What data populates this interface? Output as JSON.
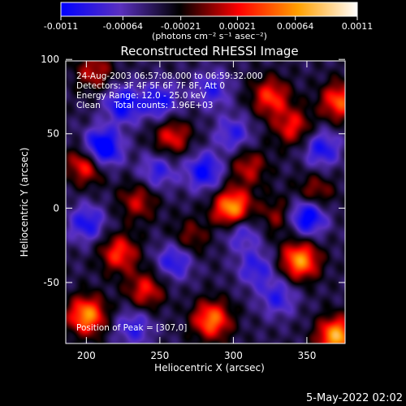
{
  "chart_data": {
    "type": "heatmap",
    "title": "Reconstructed RHESSI Image",
    "xlabel": "Heliocentric X (arcsec)",
    "ylabel": "Heliocentric Y (arcsec)",
    "xlim": [
      186,
      376
    ],
    "ylim": [
      -91,
      99
    ],
    "x_ticks": [
      "200",
      "250",
      "300",
      "350"
    ],
    "x_tick_values": [
      200,
      250,
      300,
      350
    ],
    "y_ticks": [
      "100",
      "50",
      "0",
      "-50"
    ],
    "y_tick_values": [
      100,
      50,
      0,
      -50
    ],
    "colorbar": {
      "ticks": [
        "-0.0011",
        "-0.00064",
        "-0.00021",
        "0.00021",
        "0.00064",
        "0.0011"
      ],
      "tick_values": [
        -0.0011,
        -0.00064,
        -0.00021,
        0.00021,
        0.00064,
        0.0011
      ],
      "range": [
        -0.0011,
        0.0011
      ],
      "label": "(photons cm⁻² s⁻¹ asec⁻²)",
      "colors": [
        "#0000ff",
        "#5a30c0",
        "#000000",
        "#ff0000",
        "#ffa000",
        "#ffffff"
      ]
    },
    "annotations": [
      "24-Aug-2003 06:57:08.000 to 06:59:32.000",
      "Detectors: 3F 4F 5F 6F 7F 8F, Att 0",
      "Energy Range: 12.0 - 25.0 keV",
      "Clean     Total counts: 1.96E+03"
    ],
    "peak_label": "Position of Peak = [307,0]",
    "peak": [
      307,
      0
    ],
    "blobs": [
      {
        "x": 299,
        "y": 0,
        "v": 0.0011
      },
      {
        "x": 345,
        "y": -35,
        "v": 0.001
      },
      {
        "x": 370,
        "y": -86,
        "v": 0.0011
      },
      {
        "x": 285,
        "y": -75,
        "v": 0.0009
      },
      {
        "x": 222,
        "y": -30,
        "v": 0.0007
      },
      {
        "x": 200,
        "y": -72,
        "v": 0.001
      },
      {
        "x": 258,
        "y": 48,
        "v": 0.0006
      },
      {
        "x": 340,
        "y": 55,
        "v": 0.0006
      },
      {
        "x": 372,
        "y": 72,
        "v": 0.0008
      },
      {
        "x": 200,
        "y": 30,
        "v": 0.0008
      },
      {
        "x": 325,
        "y": 75,
        "v": 0.0007
      },
      {
        "x": 205,
        "y": 92,
        "v": 0.0005
      },
      {
        "x": 240,
        "y": -55,
        "v": 0.0006
      },
      {
        "x": 310,
        "y": 28,
        "v": 0.0005
      },
      {
        "x": 355,
        "y": 10,
        "v": 0.0005
      },
      {
        "x": 330,
        "y": -5,
        "v": 0.0004
      },
      {
        "x": 270,
        "y": -20,
        "v": 0.0004
      },
      {
        "x": 235,
        "y": 5,
        "v": 0.0005
      },
      {
        "x": 210,
        "y": 40,
        "v": -0.0011
      },
      {
        "x": 225,
        "y": 70,
        "v": -0.0007
      },
      {
        "x": 250,
        "y": 72,
        "v": -0.0006
      },
      {
        "x": 280,
        "y": 25,
        "v": -0.0007
      },
      {
        "x": 300,
        "y": 50,
        "v": -0.0005
      },
      {
        "x": 350,
        "y": -5,
        "v": -0.0009
      },
      {
        "x": 360,
        "y": 40,
        "v": -0.0006
      },
      {
        "x": 260,
        "y": -35,
        "v": -0.0006
      },
      {
        "x": 315,
        "y": -40,
        "v": -0.0005
      },
      {
        "x": 330,
        "y": -60,
        "v": -0.0005
      },
      {
        "x": 200,
        "y": -10,
        "v": -0.0006
      },
      {
        "x": 248,
        "y": 25,
        "v": -0.0005
      },
      {
        "x": 285,
        "y": 80,
        "v": -0.0005
      },
      {
        "x": 305,
        "y": -15,
        "v": -0.0005
      },
      {
        "x": 232,
        "y": -80,
        "v": -0.0005
      }
    ]
  },
  "footer": {
    "timestamp": "5-May-2022 02:02"
  }
}
